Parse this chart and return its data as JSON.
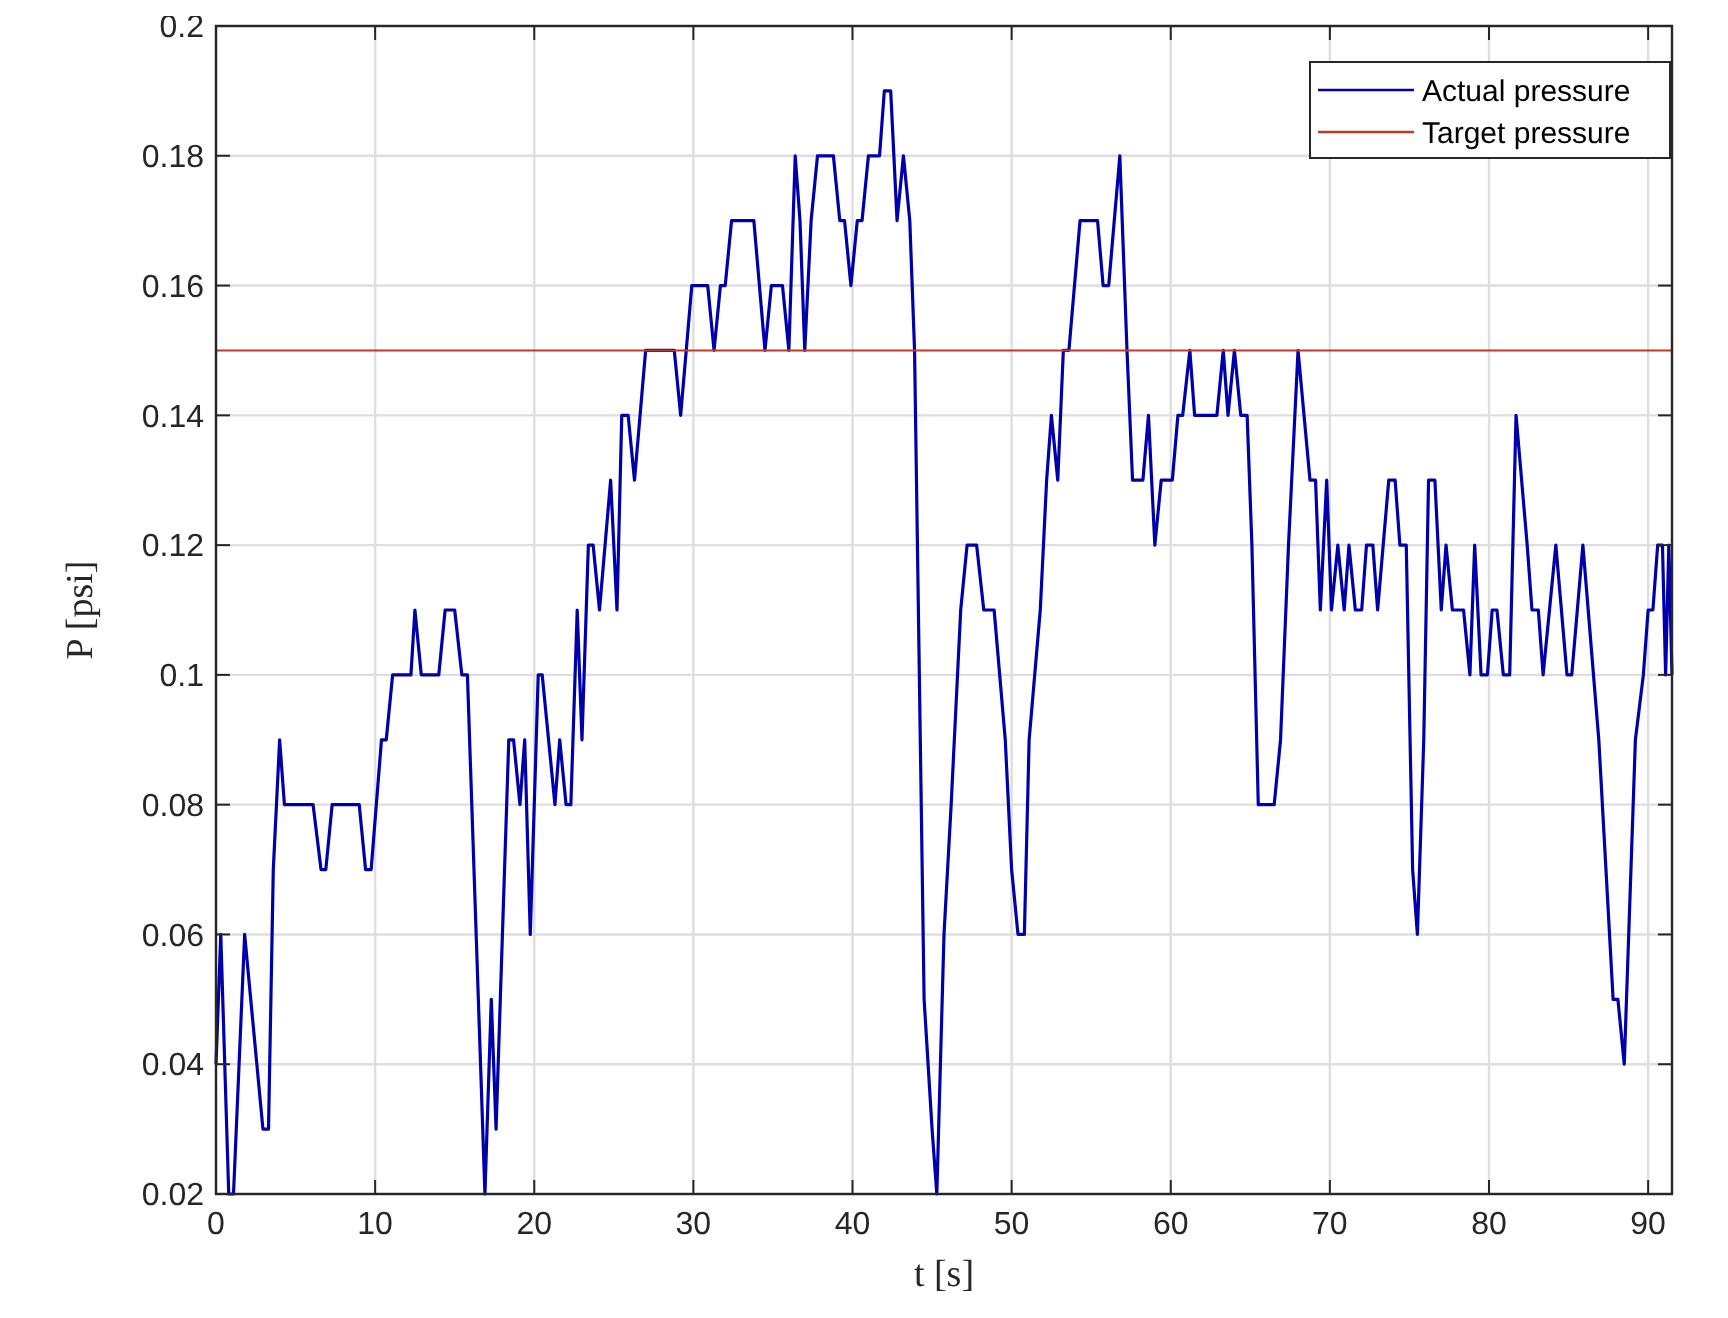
{
  "chart_data": {
    "type": "line",
    "xlabel": "t [s]",
    "ylabel": "P [psi]",
    "xlim": [
      0,
      91.5
    ],
    "xticks": [
      0,
      10,
      20,
      30,
      40,
      50,
      60,
      70,
      80,
      90
    ],
    "ylim": [
      0.02,
      0.2
    ],
    "yticks": [
      0.02,
      0.04,
      0.06,
      0.08,
      0.1,
      0.12,
      0.14,
      0.16,
      0.18,
      0.2
    ],
    "grid": true,
    "legend": "top right",
    "line_style": "solid",
    "marker": "none",
    "series": [
      {
        "name": "Actual pressure",
        "color": "#0000aa",
        "x": [
          0,
          0.3,
          0.8,
          1.1,
          1.8,
          2.95,
          3.3,
          3.6,
          4.0,
          4.3,
          6.1,
          6.6,
          6.9,
          7.3,
          9.0,
          9.4,
          9.75,
          10.4,
          10.7,
          11.1,
          12.25,
          12.5,
          12.9,
          14.0,
          14.4,
          15.0,
          15.45,
          15.8,
          16.9,
          17.3,
          17.6,
          18.4,
          18.7,
          19.1,
          19.4,
          19.75,
          20.25,
          20.5,
          21.3,
          21.6,
          22.0,
          22.3,
          22.7,
          23.0,
          23.4,
          23.7,
          24.1,
          24.8,
          25.2,
          25.5,
          25.9,
          26.3,
          27.0,
          28.8,
          29.2,
          29.9,
          30.9,
          31.3,
          31.7,
          32.0,
          32.4,
          33.8,
          34.5,
          34.9,
          35.6,
          36.0,
          36.4,
          36.7,
          37.0,
          37.4,
          37.8,
          38.8,
          39.2,
          39.5,
          39.9,
          40.3,
          40.6,
          41.0,
          41.7,
          42.0,
          42.4,
          42.8,
          43.2,
          43.6,
          43.9,
          44.5,
          45.0,
          45.3,
          45.75,
          46.2,
          46.8,
          47.2,
          47.8,
          48.25,
          48.9,
          49.6,
          50.0,
          50.4,
          50.8,
          51.1,
          51.8,
          52.2,
          52.5,
          52.9,
          53.25,
          53.6,
          54.3,
          55.4,
          55.75,
          56.1,
          56.8,
          57.25,
          57.6,
          58.25,
          58.6,
          59.0,
          59.4,
          60.1,
          60.45,
          60.75,
          61.2,
          61.5,
          62.9,
          63.3,
          63.6,
          64.0,
          64.4,
          64.8,
          65.1,
          65.5,
          66.5,
          66.9,
          67.4,
          68.0,
          68.75,
          69.1,
          69.4,
          69.8,
          70.1,
          70.5,
          70.9,
          71.2,
          71.6,
          72.0,
          72.3,
          72.7,
          73.0,
          73.7,
          74.1,
          74.4,
          74.8,
          75.2,
          75.5,
          75.9,
          76.2,
          76.6,
          77.0,
          77.3,
          77.7,
          78.4,
          78.8,
          79.1,
          79.5,
          79.9,
          80.2,
          80.5,
          80.9,
          81.3,
          81.7,
          82.4,
          82.7,
          83.1,
          83.4,
          84.2,
          84.9,
          85.2,
          85.9,
          86.9,
          87.8,
          88.1,
          88.5,
          89.2,
          89.7,
          90.0,
          90.3,
          90.6,
          90.9,
          91.1,
          91.3,
          91.5
        ],
        "values": [
          0.04,
          0.06,
          0.02,
          0.02,
          0.06,
          0.03,
          0.03,
          0.07,
          0.09,
          0.08,
          0.08,
          0.07,
          0.07,
          0.08,
          0.08,
          0.07,
          0.07,
          0.09,
          0.09,
          0.1,
          0.1,
          0.11,
          0.1,
          0.1,
          0.11,
          0.11,
          0.1,
          0.1,
          0.02,
          0.05,
          0.03,
          0.09,
          0.09,
          0.08,
          0.09,
          0.06,
          0.1,
          0.1,
          0.08,
          0.09,
          0.08,
          0.08,
          0.11,
          0.09,
          0.12,
          0.12,
          0.11,
          0.13,
          0.11,
          0.14,
          0.14,
          0.13,
          0.15,
          0.15,
          0.14,
          0.16,
          0.16,
          0.15,
          0.16,
          0.16,
          0.17,
          0.17,
          0.15,
          0.16,
          0.16,
          0.15,
          0.18,
          0.17,
          0.15,
          0.17,
          0.18,
          0.18,
          0.17,
          0.17,
          0.16,
          0.17,
          0.17,
          0.18,
          0.18,
          0.19,
          0.19,
          0.17,
          0.18,
          0.17,
          0.15,
          0.05,
          0.03,
          0.02,
          0.06,
          0.08,
          0.11,
          0.12,
          0.12,
          0.11,
          0.11,
          0.09,
          0.07,
          0.06,
          0.06,
          0.09,
          0.11,
          0.13,
          0.14,
          0.13,
          0.15,
          0.15,
          0.17,
          0.17,
          0.16,
          0.16,
          0.18,
          0.15,
          0.13,
          0.13,
          0.14,
          0.12,
          0.13,
          0.13,
          0.14,
          0.14,
          0.15,
          0.14,
          0.14,
          0.15,
          0.14,
          0.15,
          0.14,
          0.14,
          0.12,
          0.08,
          0.08,
          0.09,
          0.12,
          0.15,
          0.13,
          0.13,
          0.11,
          0.13,
          0.11,
          0.12,
          0.11,
          0.12,
          0.11,
          0.11,
          0.12,
          0.12,
          0.11,
          0.13,
          0.13,
          0.12,
          0.12,
          0.07,
          0.06,
          0.09,
          0.13,
          0.13,
          0.11,
          0.12,
          0.11,
          0.11,
          0.1,
          0.12,
          0.1,
          0.1,
          0.11,
          0.11,
          0.1,
          0.1,
          0.14,
          0.12,
          0.11,
          0.11,
          0.1,
          0.12,
          0.1,
          0.1,
          0.12,
          0.09,
          0.05,
          0.05,
          0.04,
          0.09,
          0.1,
          0.11,
          0.11,
          0.12,
          0.12,
          0.1,
          0.12,
          0.1
        ]
      },
      {
        "name": "Target pressure",
        "color": "#c0392b",
        "x": [
          0,
          91.5
        ],
        "values": [
          0.15,
          0.15
        ]
      }
    ]
  }
}
